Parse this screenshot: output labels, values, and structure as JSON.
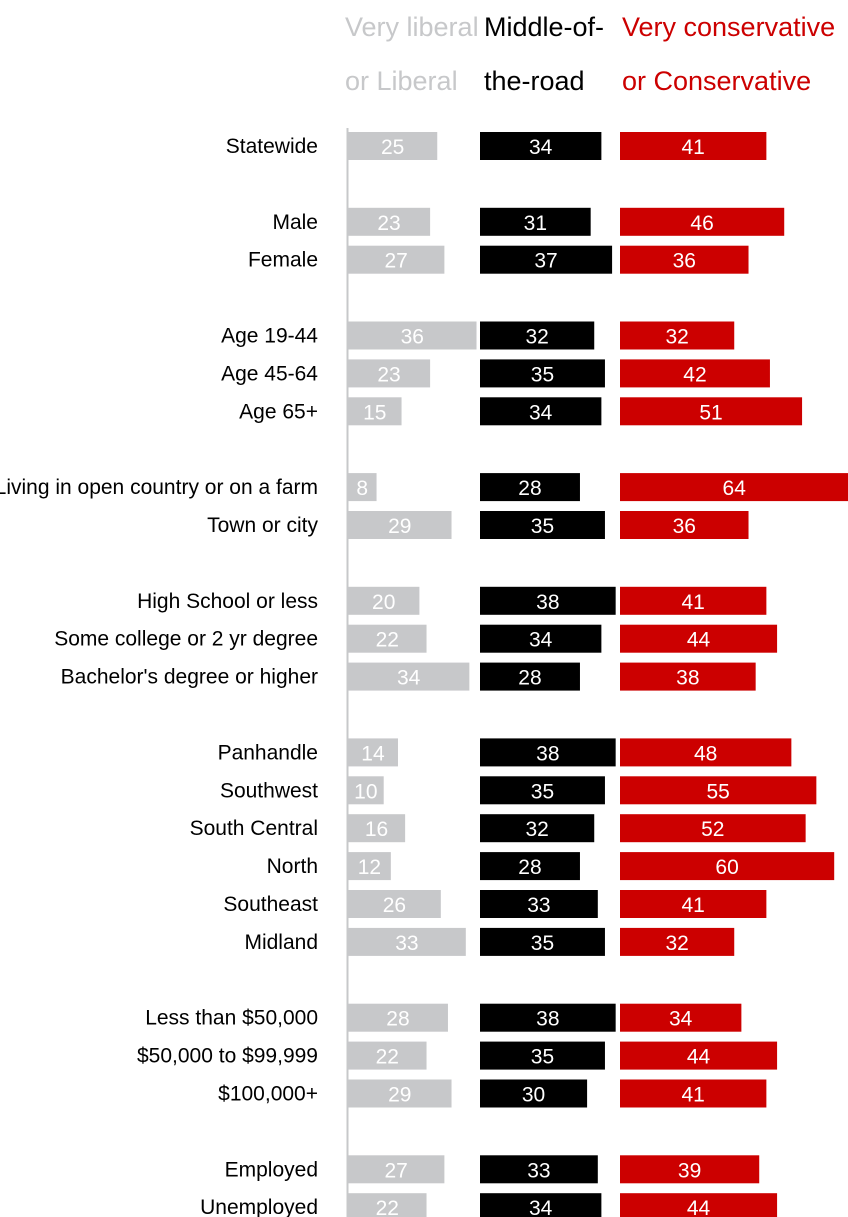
{
  "colors": {
    "liberal": "#c7c8ca",
    "middle": "#000000",
    "conservative": "#cc0000",
    "axis": "#c7c8ca",
    "background": "#ffffff"
  },
  "chart_data": {
    "type": "bar",
    "layout": "grouped-horizontal-small-multiples",
    "series": [
      {
        "name": "Very liberal or Liberal",
        "header_lines": [
          "Very liberal",
          "or Liberal"
        ],
        "values": [
          25,
          23,
          27,
          36,
          23,
          15,
          8,
          29,
          20,
          22,
          34,
          14,
          10,
          16,
          12,
          26,
          33,
          28,
          22,
          29,
          27,
          22
        ]
      },
      {
        "name": "Middle-of-the-road",
        "header_lines": [
          "Middle-of-",
          "the-road"
        ],
        "values": [
          34,
          31,
          37,
          32,
          35,
          34,
          28,
          35,
          38,
          34,
          28,
          38,
          35,
          32,
          28,
          33,
          35,
          38,
          35,
          30,
          33,
          34
        ]
      },
      {
        "name": "Very conservative or Conservative",
        "header_lines": [
          "Very conservative",
          "or Conservative"
        ],
        "values": [
          41,
          46,
          36,
          32,
          42,
          51,
          64,
          36,
          41,
          44,
          38,
          48,
          55,
          52,
          60,
          41,
          32,
          34,
          44,
          41,
          39,
          44
        ]
      }
    ],
    "categories": [
      "Statewide",
      "Male",
      "Female",
      "Age 19-44",
      "Age 45-64",
      "Age 65+",
      "Living in open country or on a farm",
      "Town or city",
      "High School or less",
      "Some college or 2 yr degree",
      "Bachelor's degree or higher",
      "Panhandle",
      "Southwest",
      "South Central",
      "North",
      "Southeast",
      "Midland",
      "Less than $50,000",
      "$50,000 to $99,999",
      "$100,000+",
      "Employed",
      "Unemployed"
    ],
    "groups": [
      [
        0
      ],
      [
        1,
        2
      ],
      [
        3,
        4,
        5
      ],
      [
        6,
        7
      ],
      [
        8,
        9,
        10
      ],
      [
        11,
        12,
        13,
        14,
        15,
        16
      ],
      [
        17,
        18,
        19
      ],
      [
        20,
        21
      ]
    ],
    "xlabel": "",
    "ylabel": "",
    "title": "",
    "legend": "column headers at top"
  }
}
